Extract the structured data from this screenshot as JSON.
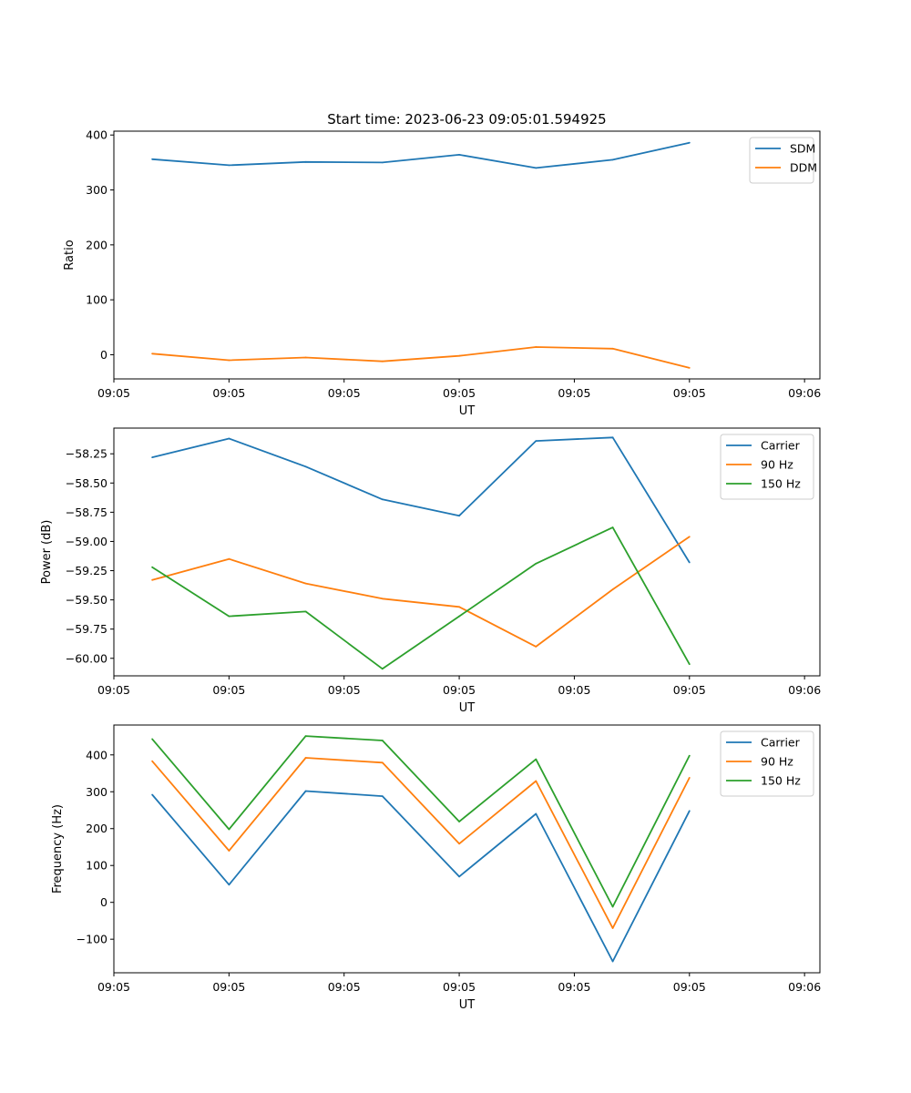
{
  "figure": {
    "title": "Start time: 2023-06-23 09:05:01.594925"
  },
  "colors": {
    "blue": "#1f77b4",
    "orange": "#ff7f0e",
    "green": "#2ca02c"
  },
  "chart_data": [
    {
      "type": "line",
      "xlabel": "UT",
      "ylabel": "Ratio",
      "x": [
        1.0,
        2.0,
        3.0,
        4.0,
        5.0,
        6.0,
        7.0,
        8.0
      ],
      "xlim": [
        0.5,
        9.7
      ],
      "xticks": [
        0.5,
        2.0,
        3.5,
        5.0,
        6.5,
        8.0,
        9.5
      ],
      "xtick_labels": [
        "09:05",
        "09:05",
        "09:05",
        "09:05",
        "09:05",
        "09:05",
        "09:06"
      ],
      "ylim": [
        -44,
        407
      ],
      "yticks": [
        0,
        100,
        200,
        300,
        400
      ],
      "ytick_labels": [
        "0",
        "100",
        "200",
        "300",
        "400"
      ],
      "legend": "top-right",
      "series": [
        {
          "name": "SDM",
          "color": "#1f77b4",
          "values": [
            356,
            345,
            351,
            350,
            364,
            340,
            355,
            386
          ]
        },
        {
          "name": "DDM",
          "color": "#ff7f0e",
          "values": [
            2,
            -10,
            -5,
            -12,
            -2,
            14,
            11,
            -24
          ]
        }
      ]
    },
    {
      "type": "line",
      "xlabel": "UT",
      "ylabel": "Power (dB)",
      "x": [
        1.0,
        2.0,
        3.0,
        4.0,
        5.0,
        6.0,
        7.0,
        8.0
      ],
      "xlim": [
        0.5,
        9.7
      ],
      "xticks": [
        0.5,
        2.0,
        3.5,
        5.0,
        6.5,
        8.0,
        9.5
      ],
      "xtick_labels": [
        "09:05",
        "09:05",
        "09:05",
        "09:05",
        "09:05",
        "09:05",
        "09:06"
      ],
      "ylim": [
        -60.15,
        -58.03
      ],
      "yticks": [
        -60.0,
        -59.75,
        -59.5,
        -59.25,
        -59.0,
        -58.75,
        -58.5,
        -58.25
      ],
      "ytick_labels": [
        "−60.00",
        "−59.75",
        "−59.50",
        "−59.25",
        "−59.00",
        "−58.75",
        "−58.50",
        "−58.25"
      ],
      "legend": "top-right",
      "series": [
        {
          "name": "Carrier",
          "color": "#1f77b4",
          "values": [
            -58.28,
            -58.12,
            -58.36,
            -58.64,
            -58.78,
            -58.14,
            -58.11,
            -59.18
          ]
        },
        {
          "name": "90 Hz",
          "color": "#ff7f0e",
          "values": [
            -59.33,
            -59.15,
            -59.36,
            -59.49,
            -59.56,
            -59.9,
            -59.41,
            -58.96
          ]
        },
        {
          "name": "150 Hz",
          "color": "#2ca02c",
          "values": [
            -59.22,
            -59.64,
            -59.6,
            -60.09,
            -59.64,
            -59.19,
            -58.88,
            -60.05
          ]
        }
      ]
    },
    {
      "type": "line",
      "xlabel": "UT",
      "ylabel": "Frequency (Hz)",
      "x": [
        1.0,
        2.0,
        3.0,
        4.0,
        5.0,
        6.0,
        7.0,
        8.0
      ],
      "xlim": [
        0.5,
        9.7
      ],
      "xticks": [
        0.5,
        2.0,
        3.5,
        5.0,
        6.5,
        8.0,
        9.5
      ],
      "xtick_labels": [
        "09:05",
        "09:05",
        "09:05",
        "09:05",
        "09:05",
        "09:05",
        "09:06"
      ],
      "ylim": [
        -191,
        481
      ],
      "yticks": [
        -100,
        0,
        100,
        200,
        300,
        400
      ],
      "ytick_labels": [
        "−100",
        "0",
        "100",
        "200",
        "300",
        "400"
      ],
      "legend": "top-right",
      "series": [
        {
          "name": "Carrier",
          "color": "#1f77b4",
          "values": [
            292,
            48,
            302,
            288,
            70,
            240,
            -160,
            248
          ]
        },
        {
          "name": "90 Hz",
          "color": "#ff7f0e",
          "values": [
            383,
            140,
            392,
            379,
            159,
            329,
            -70,
            338
          ]
        },
        {
          "name": "150 Hz",
          "color": "#2ca02c",
          "values": [
            443,
            198,
            451,
            439,
            219,
            388,
            -12,
            398
          ]
        }
      ]
    }
  ]
}
